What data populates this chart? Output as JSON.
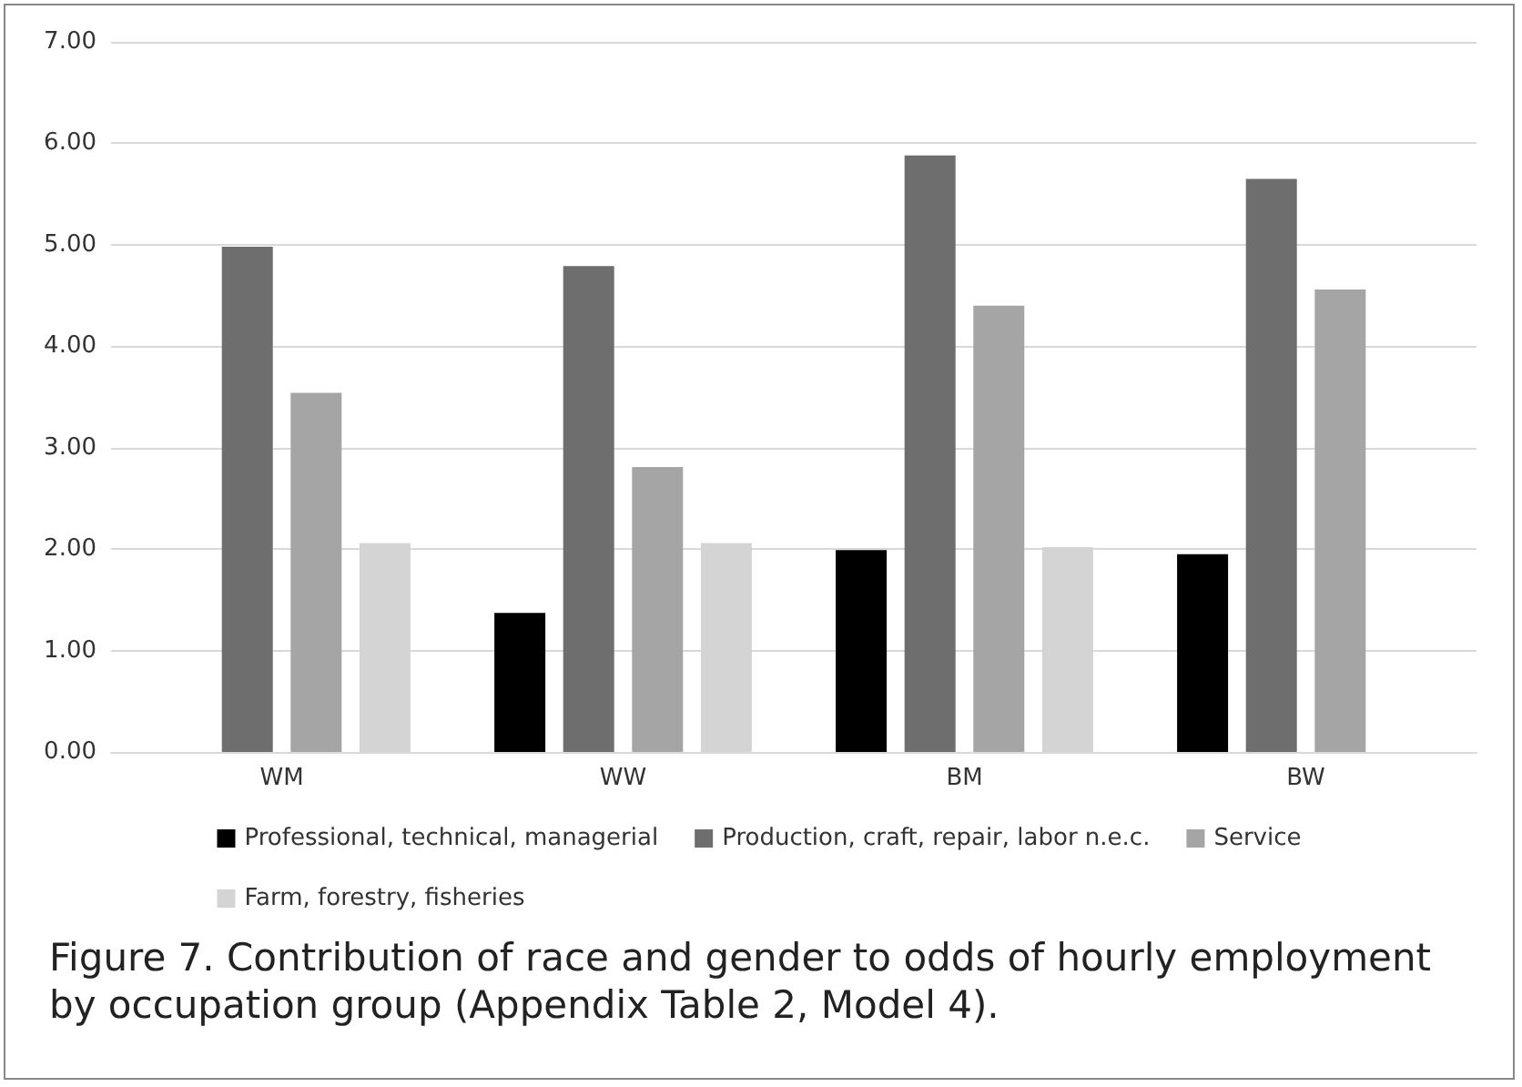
{
  "chart_data": {
    "type": "bar",
    "title": "Figure 7. Contribution of race and gender to odds of hourly employment by occupation group (Appendix Table 2, Model 4).",
    "categories": [
      "WM",
      "WW",
      "BM",
      "BW"
    ],
    "series": [
      {
        "name": "Professional, technical, managerial",
        "color": "#000000",
        "values": [
          null,
          1.37,
          1.99,
          1.95
        ]
      },
      {
        "name": "Production, craft, repair, labor n.e.c.",
        "color": "#6e6e6e",
        "values": [
          4.98,
          4.79,
          5.88,
          5.65
        ]
      },
      {
        "name": "Service",
        "color": "#a5a5a5",
        "values": [
          3.54,
          2.81,
          4.4,
          4.56
        ]
      },
      {
        "name": "Farm, forestry, fisheries",
        "color": "#d4d4d4",
        "values": [
          2.06,
          2.06,
          2.02,
          null
        ]
      }
    ],
    "ylim": [
      0,
      7
    ],
    "yticks": [
      {
        "value": 0,
        "label": "0.00"
      },
      {
        "value": 1,
        "label": "1.00"
      },
      {
        "value": 2,
        "label": "2.00"
      },
      {
        "value": 3,
        "label": "3.00"
      },
      {
        "value": 4,
        "label": "4.00"
      },
      {
        "value": 5,
        "label": "5.00"
      },
      {
        "value": 6,
        "label": "6.00"
      },
      {
        "value": 7,
        "label": "7.00"
      }
    ],
    "grid": "y",
    "legend": "bottom"
  }
}
